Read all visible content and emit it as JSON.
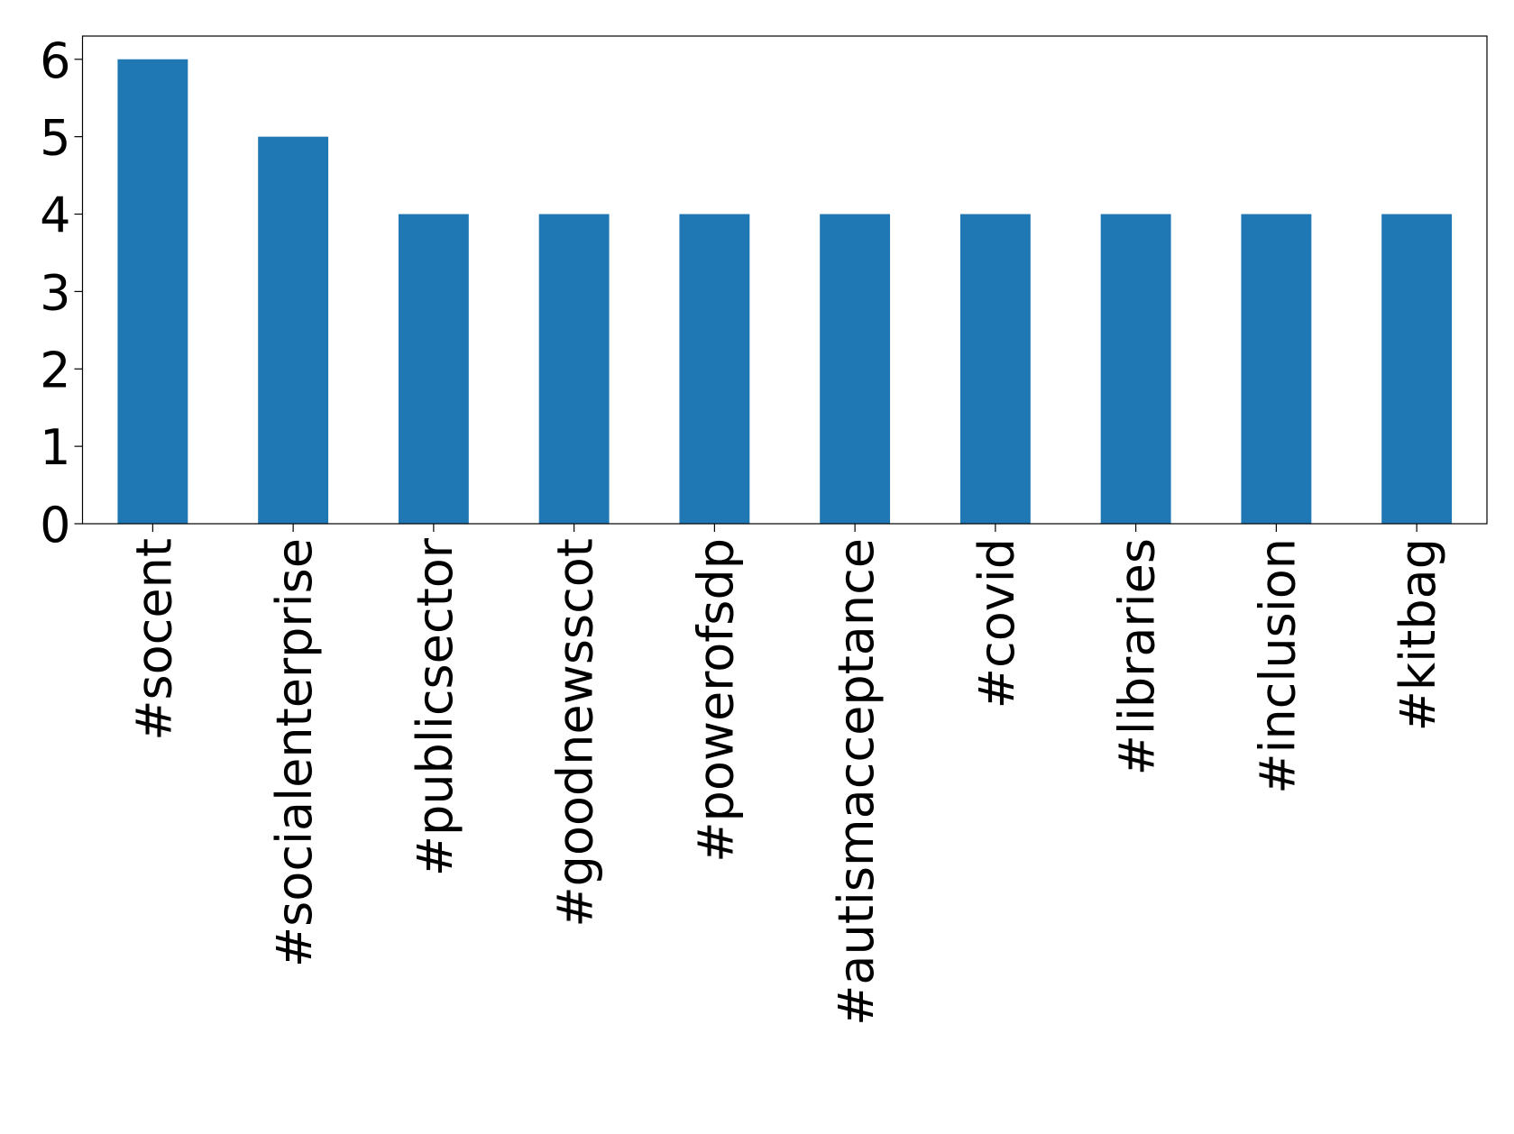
{
  "chart_data": {
    "type": "bar",
    "categories": [
      "#socent",
      "#socialenterprise",
      "#publicsector",
      "#goodnewsscot",
      "#powerofsdp",
      "#autismacceptance",
      "#covid",
      "#libraries",
      "#inclusion",
      "#kitbag"
    ],
    "values": [
      6,
      5,
      4,
      4,
      4,
      4,
      4,
      4,
      4,
      4
    ],
    "color": "#1f77b4",
    "ylim": [
      0,
      6.3
    ],
    "yticks": [
      0,
      1,
      2,
      3,
      4,
      5,
      6
    ],
    "grid": false
  }
}
